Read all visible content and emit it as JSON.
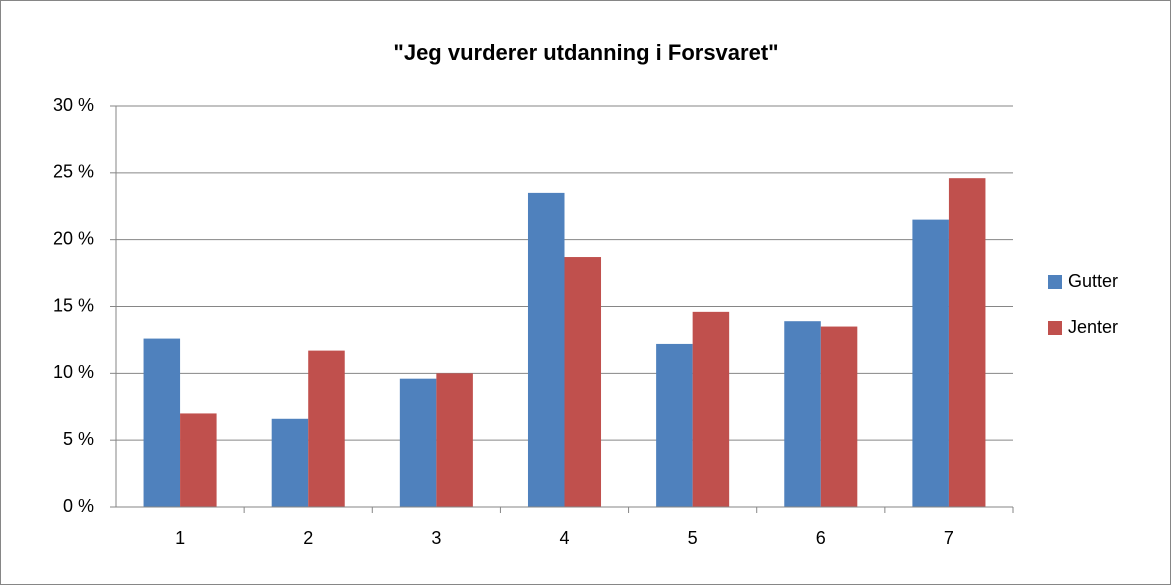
{
  "chart_data": {
    "type": "bar",
    "title": "\"Jeg vurderer utdanning i Forsvaret\"",
    "categories": [
      "1",
      "2",
      "3",
      "4",
      "5",
      "6",
      "7"
    ],
    "series": [
      {
        "name": "Gutter",
        "color": "#4f81bd",
        "values": [
          12.6,
          6.6,
          9.6,
          23.5,
          12.2,
          13.9,
          21.5
        ]
      },
      {
        "name": "Jenter",
        "color": "#c0504d",
        "values": [
          7.0,
          11.7,
          10.0,
          18.7,
          14.6,
          13.5,
          24.6
        ]
      }
    ],
    "ylim": [
      0,
      30
    ],
    "yticks": [
      {
        "value": 0,
        "label": "0 %"
      },
      {
        "value": 5,
        "label": "5 %"
      },
      {
        "value": 10,
        "label": "10 %"
      },
      {
        "value": 15,
        "label": "15 %"
      },
      {
        "value": 20,
        "label": "20 %"
      },
      {
        "value": 25,
        "label": "25 %"
      },
      {
        "value": 30,
        "label": "30 %"
      }
    ],
    "grid": true,
    "legend": "right"
  }
}
